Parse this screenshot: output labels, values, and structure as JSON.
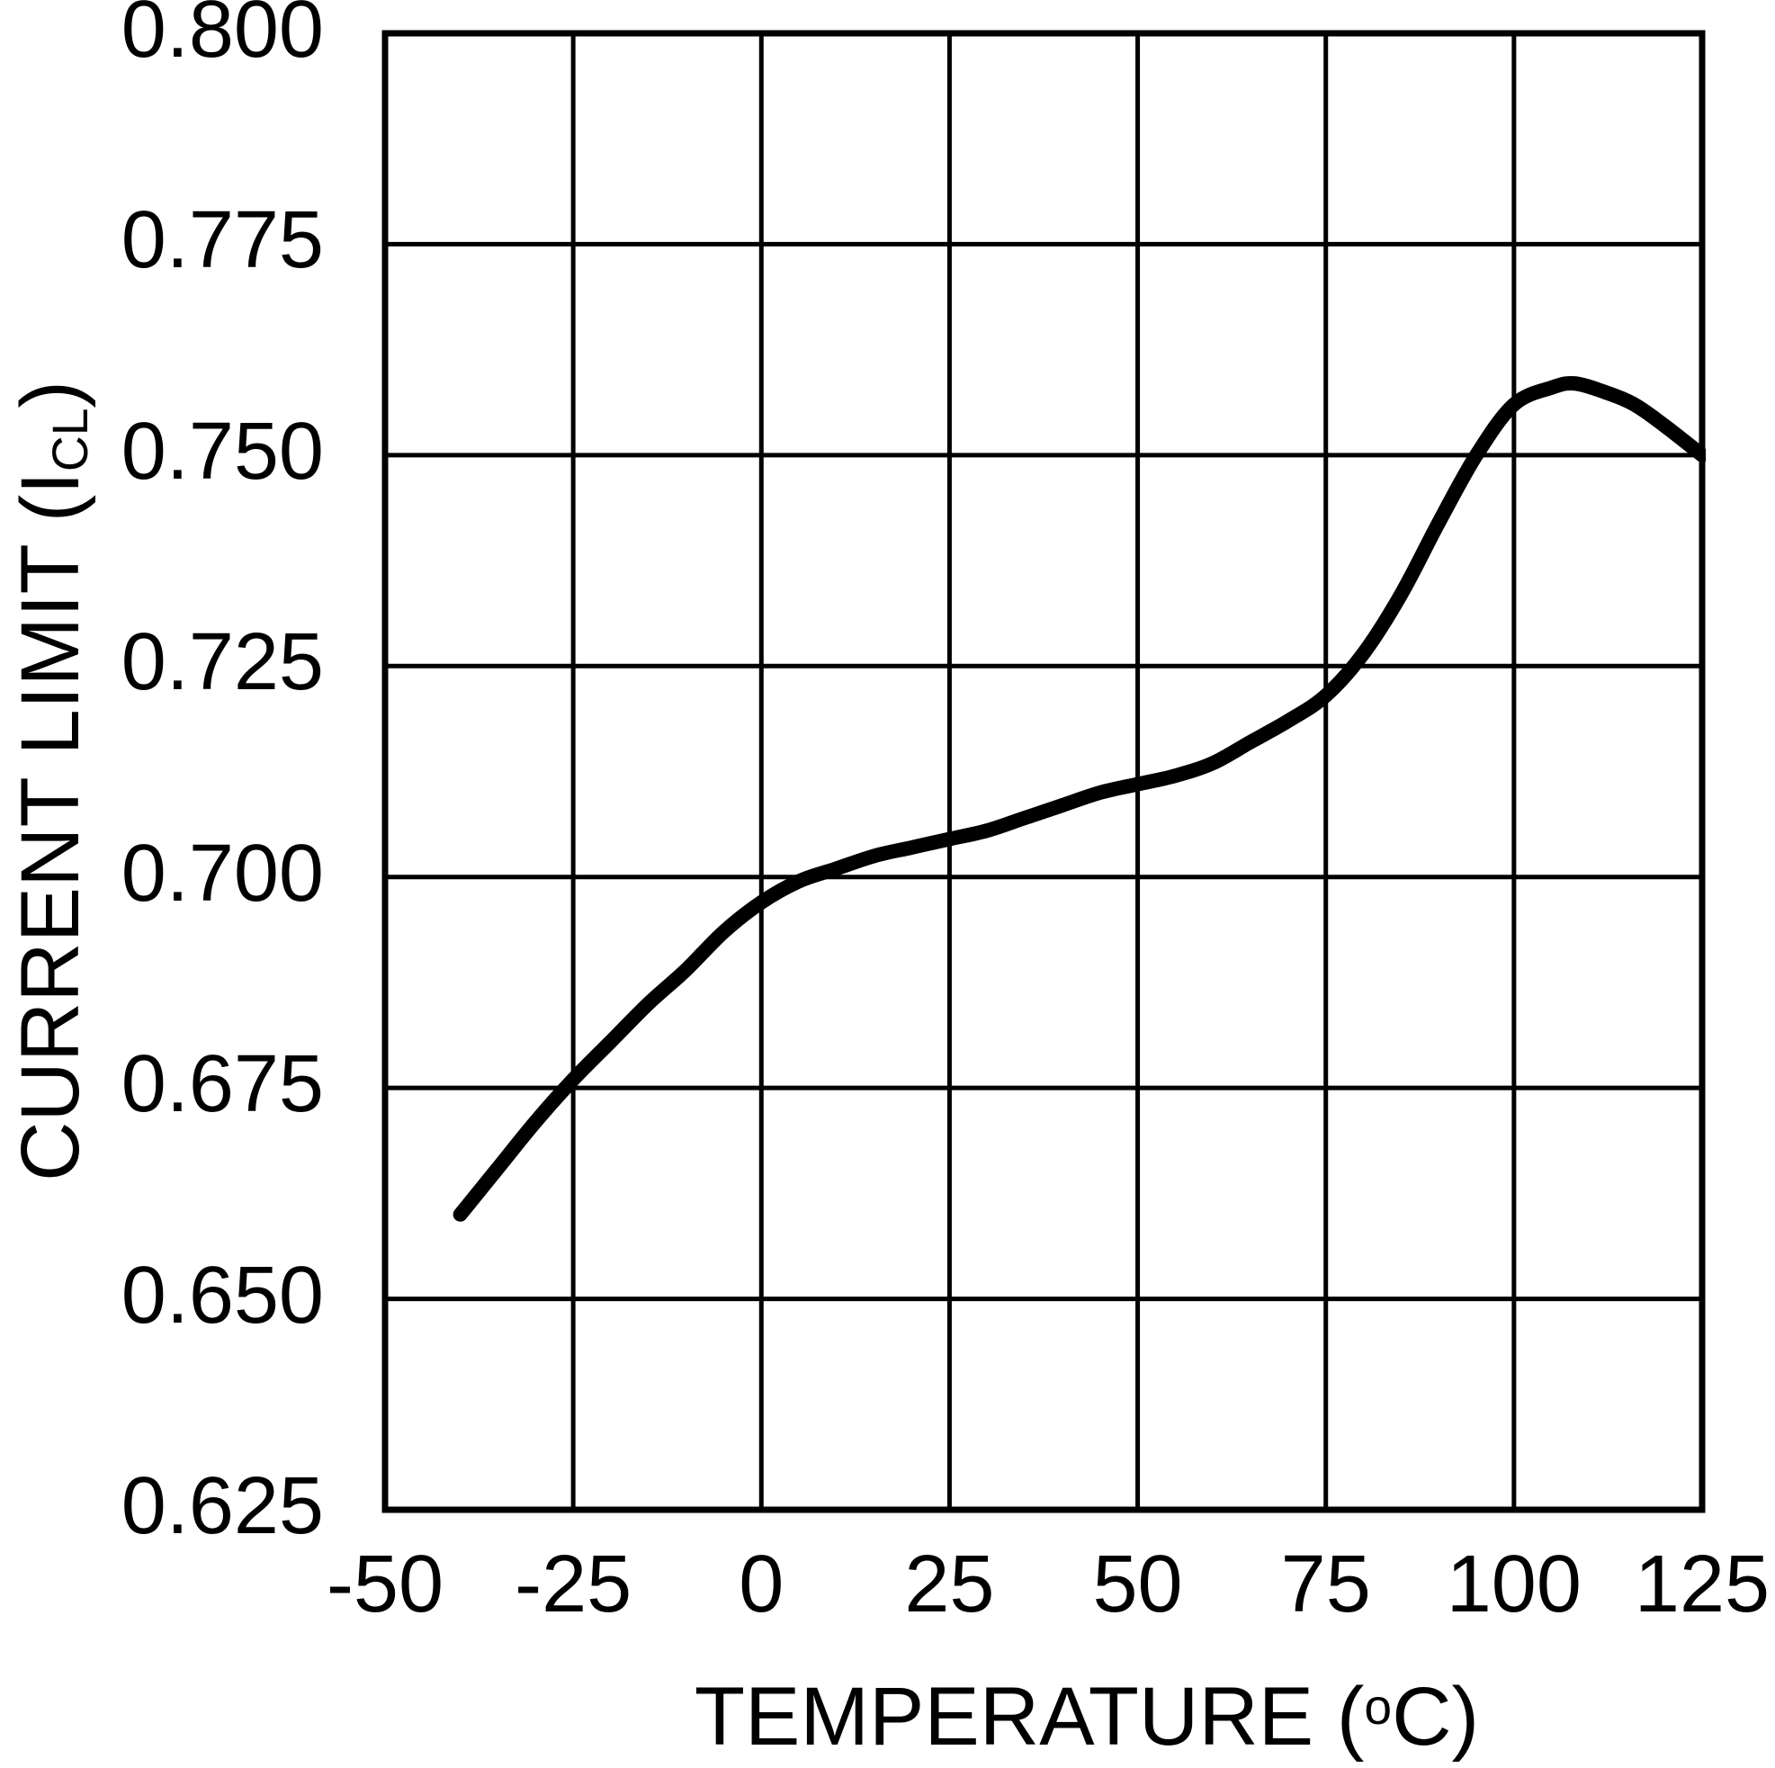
{
  "figure": {
    "background": "#ffffff",
    "foreground": "#000000"
  },
  "chart_data": {
    "type": "line",
    "title": "",
    "xlabel": "TEMPERATURE (°C)",
    "ylabel": "CURRENT LIMIT (I_CL)",
    "xlabel_parts": {
      "main": "TEMPERATURE (",
      "sup": "o",
      "tail": "C)"
    },
    "ylabel_parts": {
      "main": "CURRENT LIMIT (I",
      "sub": "CL",
      "tail": ")"
    },
    "xlim": [
      -50,
      125
    ],
    "ylim": [
      0.625,
      0.8
    ],
    "x_tick_labels": [
      "-50",
      "-25",
      "0",
      "25",
      "50",
      "75",
      "100",
      "125"
    ],
    "y_tick_labels": [
      "0.800",
      "0.775",
      "0.750",
      "0.725",
      "0.700",
      "0.675",
      "0.650",
      "0.625"
    ],
    "grid": "on",
    "legend": "none",
    "line_color": "#000000",
    "grid_color": "#000000",
    "series": [
      {
        "name": "current_limit_vs_temperature",
        "x": [
          -40,
          -35,
          -30,
          -25,
          -20,
          -15,
          -10,
          -5,
          0,
          5,
          10,
          15,
          20,
          25,
          30,
          35,
          40,
          45,
          50,
          55,
          60,
          65,
          70,
          75,
          80,
          85,
          90,
          95,
          100,
          105,
          108,
          112,
          116,
          120,
          125
        ],
        "y": [
          0.66,
          0.6655,
          0.671,
          0.676,
          0.6805,
          0.685,
          0.689,
          0.6935,
          0.697,
          0.6995,
          0.701,
          0.7025,
          0.7035,
          0.7045,
          0.7055,
          0.707,
          0.7085,
          0.71,
          0.711,
          0.712,
          0.7135,
          0.716,
          0.7185,
          0.7215,
          0.7265,
          0.7335,
          0.742,
          0.75,
          0.756,
          0.758,
          0.7585,
          0.7575,
          0.756,
          0.7535,
          0.75
        ]
      }
    ]
  }
}
